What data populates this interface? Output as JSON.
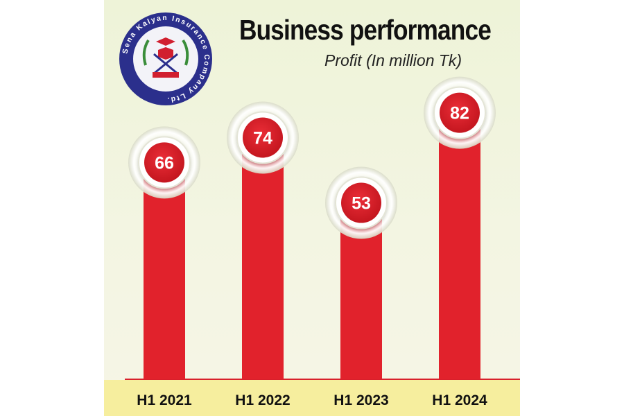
{
  "logo": {
    "icon": "sena-kalyan-insurance-logo",
    "ring_text": "Sena Kalyan Insurance Company Ltd.",
    "colors": {
      "ring": "#2b2f8c",
      "inner": "#f3f3f8",
      "accent": "#d11f2f",
      "leaf": "#3a8d3a"
    }
  },
  "chart_data": {
    "type": "bar",
    "title": "Business performance",
    "subtitle": "Profit (In million Tk)",
    "categories": [
      "H1 2021",
      "H1 2022",
      "H1 2023",
      "H1 2024"
    ],
    "values": [
      66,
      74,
      53,
      82
    ],
    "ylim": [
      0,
      100
    ],
    "grid": false,
    "legend": "none",
    "colors": {
      "bar": "#e1222c",
      "label_circle": "#d81f2a",
      "background": "#f1f4dd",
      "footer": "#f6ee9e"
    }
  }
}
